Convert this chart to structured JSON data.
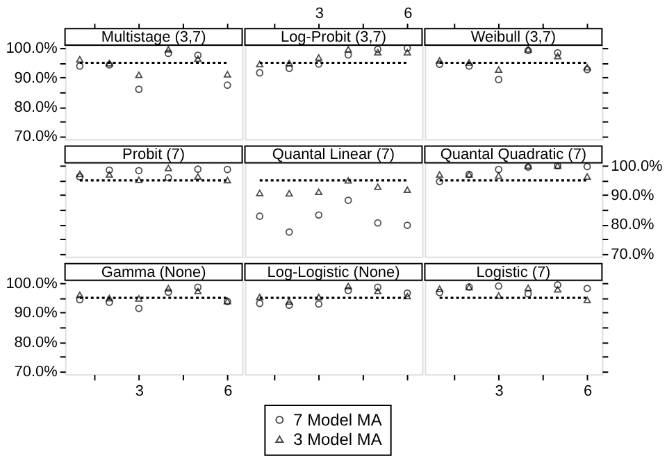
{
  "chart_data": [
    {
      "type": "scatter",
      "title": "Multistage (3,7)",
      "x": [
        1,
        2,
        3,
        4,
        5,
        6
      ],
      "series": [
        {
          "name": "7 Model MA",
          "color": "#000000",
          "marker": "circle",
          "values": [
            93.9,
            94.3,
            86.0,
            98.2,
            97.6,
            87.4
          ]
        },
        {
          "name": "3 Model MA",
          "color": "#000000",
          "marker": "triangle",
          "values": [
            96.2,
            94.9,
            90.9,
            99.6,
            96.4,
            91.1
          ]
        }
      ],
      "ref_lines": [
        {
          "axis": "y",
          "value": 95,
          "color": "#000000",
          "line_style": "dotted"
        }
      ],
      "xlim": [
        0.5,
        6.5
      ],
      "ylim": [
        69,
        101
      ],
      "xticks": [
        {
          "value": 1.5,
          "label": null
        },
        3,
        {
          "value": 4.5,
          "label": null
        },
        6
      ],
      "yticks": [
        {
          "value": 70,
          "label": "70.0%"
        },
        {
          "value": 75,
          "label": null
        },
        {
          "value": 80,
          "label": "80.0%"
        },
        {
          "value": 85,
          "label": null
        },
        {
          "value": 90,
          "label": "90.0%"
        },
        {
          "value": 95,
          "label": null
        },
        {
          "value": 100,
          "label": "100.0%"
        }
      ],
      "tick_labels": "y",
      "legend": "bottom"
    },
    {
      "type": "scatter",
      "title": "Log-Probit (3,7)",
      "x": [
        1,
        2,
        3,
        4,
        5,
        6
      ],
      "series": [
        {
          "name": "7 Model MA",
          "color": "#000000",
          "marker": "circle",
          "values": [
            91.6,
            93.1,
            94.6,
            97.7,
            99.6,
            100.0
          ]
        },
        {
          "name": "3 Model MA",
          "color": "#000000",
          "marker": "triangle",
          "values": [
            94.6,
            94.9,
            96.8,
            99.6,
            98.6,
            98.6
          ]
        }
      ],
      "ref_lines": [
        {
          "axis": "y",
          "value": 95,
          "color": "#000000",
          "line_style": "dotted"
        }
      ],
      "xlim": [
        0.5,
        6.5
      ],
      "ylim": [
        69,
        101
      ],
      "xticks": [
        {
          "value": 1.5,
          "label": null
        },
        3,
        {
          "value": 4.5,
          "label": null
        },
        6
      ]
    },
    {
      "type": "scatter",
      "title": "Weibull (3,7)",
      "x": [
        1,
        2,
        3,
        4,
        5,
        6
      ],
      "series": [
        {
          "name": "7 Model MA",
          "color": "#000000",
          "marker": "circle",
          "values": [
            94.5,
            93.9,
            89.3,
            99.2,
            98.4,
            92.7
          ]
        },
        {
          "name": "3 Model MA",
          "color": "#000000",
          "marker": "triangle",
          "values": [
            95.8,
            95.1,
            92.7,
            99.6,
            97.3,
            93.5
          ]
        }
      ],
      "ref_lines": [
        {
          "axis": "y",
          "value": 95,
          "color": "#000000",
          "line_style": "dotted"
        }
      ],
      "xlim": [
        0.5,
        6.5
      ],
      "ylim": [
        69,
        101
      ],
      "xticks": [
        {
          "value": 1.5,
          "label": null
        },
        {
          "value": 3,
          "label": null
        },
        {
          "value": 4.5,
          "label": null
        },
        {
          "value": 6,
          "label": null
        }
      ],
      "yticks": [
        {
          "value": 70,
          "label": null
        },
        {
          "value": 75,
          "label": null
        },
        {
          "value": 80,
          "label": null
        },
        {
          "value": 85,
          "label": null
        },
        {
          "value": 90,
          "label": null
        },
        {
          "value": 95,
          "label": null
        },
        {
          "value": 100,
          "label": null
        }
      ],
      "tick_labels": false
    },
    {
      "type": "scatter",
      "title": "Probit (7)",
      "x": [
        1,
        2,
        3,
        4,
        5,
        6
      ],
      "series": [
        {
          "name": "7 Model MA",
          "color": "#000000",
          "marker": "circle",
          "values": [
            96.2,
            98.5,
            98.3,
            95.9,
            98.8,
            98.7
          ]
        },
        {
          "name": "3 Model MA",
          "color": "#000000",
          "marker": "triangle",
          "values": [
            97.2,
            97.0,
            95.2,
            99.2,
            96.3,
            95.1
          ]
        }
      ],
      "ref_lines": [
        {
          "axis": "y",
          "value": 95,
          "color": "#000000",
          "line_style": "dotted"
        }
      ],
      "xlim": [
        0.5,
        6.5
      ],
      "ylim": [
        69,
        101
      ],
      "yticks": [
        {
          "value": 70,
          "label": null
        },
        {
          "value": 75,
          "label": null
        },
        {
          "value": 80,
          "label": null
        },
        {
          "value": 85,
          "label": null
        },
        {
          "value": 90,
          "label": null
        },
        {
          "value": 95,
          "label": null
        },
        {
          "value": 100,
          "label": null
        }
      ],
      "tick_labels": false
    },
    {
      "type": "scatter",
      "title": "Quantal Linear (7)",
      "x": [
        1,
        2,
        3,
        4,
        5,
        6
      ],
      "series": [
        {
          "name": "7 Model MA",
          "color": "#000000",
          "marker": "circle",
          "values": [
            82.8,
            77.4,
            83.2,
            88.2,
            80.5,
            79.7
          ]
        },
        {
          "name": "3 Model MA",
          "color": "#000000",
          "marker": "triangle",
          "values": [
            90.7,
            90.6,
            91.1,
            95.0,
            92.8,
            91.8
          ]
        }
      ],
      "ref_lines": [
        {
          "axis": "y",
          "value": 95,
          "color": "#000000",
          "line_style": "dotted"
        }
      ],
      "xlim": [
        0.5,
        6.5
      ],
      "ylim": [
        69,
        101
      ],
      "tick_labels": false
    },
    {
      "type": "scatter",
      "title": "Quantal Quadratic (7)",
      "x": [
        1,
        2,
        3,
        4,
        5,
        6
      ],
      "series": [
        {
          "name": "7 Model MA",
          "color": "#000000",
          "marker": "circle",
          "values": [
            94.6,
            97.0,
            98.7,
            99.5,
            100.0,
            99.7
          ]
        },
        {
          "name": "3 Model MA",
          "color": "#000000",
          "marker": "triangle",
          "values": [
            97.0,
            97.0,
            96.6,
            100.0,
            100.0,
            96.3
          ]
        }
      ],
      "ref_lines": [
        {
          "axis": "y",
          "value": 95,
          "color": "#000000",
          "line_style": "dotted"
        }
      ],
      "xlim": [
        0.5,
        6.5
      ],
      "ylim": [
        69,
        101
      ],
      "yticks": [
        {
          "value": 70,
          "label": "70.0%"
        },
        {
          "value": 75,
          "label": null
        },
        {
          "value": 80,
          "label": "80.0%"
        },
        {
          "value": 85,
          "label": null
        },
        {
          "value": 90,
          "label": "90.0%"
        },
        {
          "value": 95,
          "label": null
        },
        {
          "value": 100,
          "label": "100.0%"
        }
      ]
    },
    {
      "type": "scatter",
      "title": "Gamma (None)",
      "x": [
        1,
        2,
        3,
        4,
        5,
        6
      ],
      "series": [
        {
          "name": "7 Model MA",
          "color": "#000000",
          "marker": "circle",
          "values": [
            94.4,
            93.5,
            91.4,
            96.9,
            98.6,
            93.8
          ]
        },
        {
          "name": "3 Model MA",
          "color": "#000000",
          "marker": "triangle",
          "values": [
            96.0,
            94.9,
            94.8,
            98.3,
            97.3,
            93.9
          ]
        }
      ],
      "ref_lines": [
        {
          "axis": "y",
          "value": 95,
          "color": "#000000",
          "line_style": "dotted"
        }
      ],
      "xlim": [
        0.5,
        6.5
      ],
      "ylim": [
        69,
        101
      ],
      "xticks": [
        {
          "value": 1.5,
          "label": null
        },
        3,
        {
          "value": 4.5,
          "label": null
        },
        6
      ],
      "yticks": [
        {
          "value": 70,
          "label": "70.0%"
        },
        {
          "value": 75,
          "label": null
        },
        {
          "value": 80,
          "label": "80.0%"
        },
        {
          "value": 85,
          "label": null
        },
        {
          "value": 90,
          "label": "90.0%"
        },
        {
          "value": 95,
          "label": null
        },
        {
          "value": 100,
          "label": "100.0%"
        }
      ]
    },
    {
      "type": "scatter",
      "title": "Log-Logistic (None)",
      "x": [
        1,
        2,
        3,
        4,
        5,
        6
      ],
      "series": [
        {
          "name": "7 Model MA",
          "color": "#000000",
          "marker": "circle",
          "values": [
            93.1,
            92.5,
            92.9,
            97.5,
            98.6,
            96.6
          ]
        },
        {
          "name": "3 Model MA",
          "color": "#000000",
          "marker": "triangle",
          "values": [
            95.3,
            93.8,
            95.3,
            99.0,
            97.3,
            95.6
          ]
        }
      ],
      "ref_lines": [
        {
          "axis": "y",
          "value": 95,
          "color": "#000000",
          "line_style": "dotted"
        }
      ],
      "xlim": [
        0.5,
        6.5
      ],
      "ylim": [
        69,
        101
      ],
      "xticks": [
        {
          "value": 1.5,
          "label": null
        },
        {
          "value": 3,
          "label": null
        },
        {
          "value": 4.5,
          "label": null
        },
        {
          "value": 6,
          "label": null
        }
      ],
      "tick_labels": false
    },
    {
      "type": "scatter",
      "title": "Logistic (7)",
      "x": [
        1,
        2,
        3,
        4,
        5,
        6
      ],
      "series": [
        {
          "name": "7 Model MA",
          "color": "#000000",
          "marker": "circle",
          "values": [
            96.8,
            98.7,
            99.0,
            96.4,
            99.4,
            98.2
          ]
        },
        {
          "name": "3 Model MA",
          "color": "#000000",
          "marker": "triangle",
          "values": [
            98.1,
            98.7,
            95.8,
            98.4,
            97.9,
            94.3
          ]
        }
      ],
      "ref_lines": [
        {
          "axis": "y",
          "value": 95,
          "color": "#000000",
          "line_style": "dotted"
        }
      ],
      "xlim": [
        0.5,
        6.5
      ],
      "ylim": [
        69,
        101
      ],
      "xticks": [
        {
          "value": 1.5,
          "label": null
        },
        3,
        {
          "value": 4.5,
          "label": null
        },
        6
      ],
      "yticks": [
        {
          "value": 70,
          "label": null
        },
        {
          "value": 75,
          "label": null
        },
        {
          "value": 80,
          "label": null
        },
        {
          "value": 85,
          "label": null
        },
        {
          "value": 90,
          "label": null
        },
        {
          "value": 95,
          "label": null
        },
        {
          "value": 100,
          "label": null
        }
      ],
      "tick_labels": "x"
    }
  ]
}
